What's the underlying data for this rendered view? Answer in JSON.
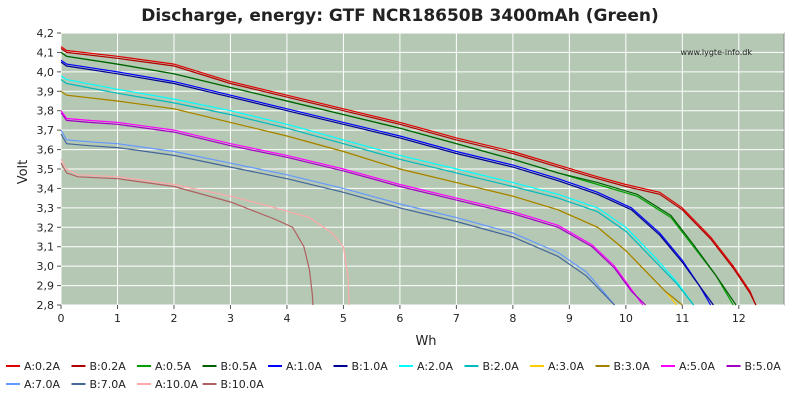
{
  "chart_data": {
    "type": "line",
    "title": "Discharge, energy: GTF NCR18650B 3400mAh (Green)",
    "xlabel": "Wh",
    "ylabel": "Volt",
    "watermark": "www.lygte-info.dk",
    "xlim": [
      0,
      12.8
    ],
    "ylim": [
      2.8,
      4.2
    ],
    "xticks": [
      "0",
      "1",
      "2",
      "3",
      "4",
      "5",
      "6",
      "7",
      "8",
      "9",
      "10",
      "11",
      "12"
    ],
    "yticks": [
      "2,8",
      "2,9",
      "3,0",
      "3,1",
      "3,2",
      "3,3",
      "3,4",
      "3,5",
      "3,6",
      "3,7",
      "3,8",
      "3,9",
      "4,0",
      "4,1",
      "4,2"
    ],
    "grid": true,
    "legend_position": "bottom",
    "series": [
      {
        "name": "A:0.2A",
        "color": "#e00000",
        "x": [
          0,
          0.1,
          1,
          2,
          3,
          4,
          5,
          6,
          7,
          8,
          8.8,
          9.5,
          10,
          10.6,
          11,
          11.5,
          11.9,
          12.2,
          12.3
        ],
        "y": [
          4.13,
          4.11,
          4.08,
          4.04,
          3.95,
          3.88,
          3.81,
          3.74,
          3.66,
          3.59,
          3.52,
          3.46,
          3.42,
          3.38,
          3.3,
          3.15,
          3.0,
          2.87,
          2.8
        ]
      },
      {
        "name": "B:0.2A",
        "color": "#b00000",
        "x": [
          0,
          0.1,
          1,
          2,
          3,
          4,
          5,
          6,
          7,
          8,
          8.8,
          9.5,
          10,
          10.6,
          11,
          11.5,
          11.9,
          12.2,
          12.3
        ],
        "y": [
          4.12,
          4.1,
          4.07,
          4.03,
          3.94,
          3.87,
          3.8,
          3.73,
          3.65,
          3.58,
          3.51,
          3.45,
          3.41,
          3.37,
          3.29,
          3.14,
          2.99,
          2.86,
          2.8
        ]
      },
      {
        "name": "A:0.5A",
        "color": "#00a000",
        "x": [
          0,
          0.1,
          1,
          2,
          3,
          4,
          5,
          6,
          7,
          8,
          8.8,
          9.5,
          10.2,
          10.8,
          11.2,
          11.6,
          11.9
        ],
        "y": [
          4.1,
          4.08,
          4.04,
          3.99,
          3.92,
          3.85,
          3.78,
          3.71,
          3.63,
          3.55,
          3.48,
          3.42,
          3.36,
          3.25,
          3.1,
          2.95,
          2.8
        ]
      },
      {
        "name": "B:0.5A",
        "color": "#006000",
        "x": [
          0,
          0.1,
          1,
          2,
          3,
          4,
          5,
          6,
          7,
          8,
          8.8,
          9.5,
          10.2,
          10.8,
          11.2,
          11.6,
          11.95
        ],
        "y": [
          4.1,
          4.08,
          4.04,
          3.99,
          3.92,
          3.85,
          3.78,
          3.71,
          3.63,
          3.55,
          3.48,
          3.43,
          3.37,
          3.26,
          3.11,
          2.95,
          2.8
        ]
      },
      {
        "name": "A:1.0A",
        "color": "#0000ff",
        "x": [
          0,
          0.1,
          1,
          2,
          3,
          4,
          5,
          6,
          7,
          8,
          8.8,
          9.5,
          10.1,
          10.6,
          11.0,
          11.3,
          11.5
        ],
        "y": [
          4.06,
          4.04,
          4.0,
          3.95,
          3.88,
          3.81,
          3.74,
          3.67,
          3.59,
          3.52,
          3.45,
          3.38,
          3.3,
          3.17,
          3.03,
          2.9,
          2.8
        ]
      },
      {
        "name": "B:1.0A",
        "color": "#000090",
        "x": [
          0,
          0.1,
          1,
          2,
          3,
          4,
          5,
          6,
          7,
          8,
          8.8,
          9.5,
          10.1,
          10.6,
          11.0,
          11.3,
          11.55
        ],
        "y": [
          4.05,
          4.03,
          3.99,
          3.94,
          3.87,
          3.8,
          3.73,
          3.66,
          3.58,
          3.51,
          3.44,
          3.37,
          3.29,
          3.16,
          3.02,
          2.9,
          2.8
        ]
      },
      {
        "name": "A:2.0A",
        "color": "#00ffff",
        "x": [
          0,
          0.1,
          1,
          2,
          3,
          4,
          5,
          6,
          7,
          8,
          8.8,
          9.5,
          10.0,
          10.5,
          10.9,
          11.2
        ],
        "y": [
          3.98,
          3.96,
          3.91,
          3.86,
          3.8,
          3.73,
          3.65,
          3.57,
          3.5,
          3.43,
          3.37,
          3.3,
          3.2,
          3.05,
          2.92,
          2.8
        ]
      },
      {
        "name": "B:2.0A",
        "color": "#00bbbb",
        "x": [
          0,
          0.1,
          1,
          2,
          3,
          4,
          5,
          6,
          7,
          8,
          8.8,
          9.5,
          10.0,
          10.5,
          10.9,
          11.2
        ],
        "y": [
          3.96,
          3.94,
          3.89,
          3.84,
          3.78,
          3.71,
          3.63,
          3.55,
          3.48,
          3.41,
          3.35,
          3.28,
          3.18,
          3.03,
          2.91,
          2.8
        ]
      },
      {
        "name": "A:3.0A",
        "color": "#ffcc00",
        "x": [
          0,
          0.1,
          1,
          2,
          3,
          4,
          5,
          6,
          7,
          8,
          8.8,
          9.5,
          10.0,
          10.4,
          10.7,
          10.9
        ],
        "y": [
          3.9,
          3.88,
          3.85,
          3.81,
          3.74,
          3.67,
          3.59,
          3.5,
          3.43,
          3.36,
          3.29,
          3.2,
          3.08,
          2.96,
          2.87,
          2.8
        ]
      },
      {
        "name": "B:3.0A",
        "color": "#a08000",
        "x": [
          0,
          0.1,
          1,
          2,
          3,
          4,
          5,
          6,
          7,
          8,
          8.8,
          9.5,
          10.0,
          10.4,
          10.7,
          11.0
        ],
        "y": [
          3.9,
          3.88,
          3.85,
          3.81,
          3.74,
          3.67,
          3.59,
          3.5,
          3.43,
          3.36,
          3.29,
          3.2,
          3.08,
          2.96,
          2.87,
          2.8
        ]
      },
      {
        "name": "A:5.0A",
        "color": "#ff00ff",
        "x": [
          0,
          0.1,
          0.5,
          1,
          2,
          3,
          4,
          5,
          6,
          7,
          8,
          8.8,
          9.4,
          9.8,
          10.1,
          10.3
        ],
        "y": [
          3.8,
          3.76,
          3.75,
          3.74,
          3.7,
          3.63,
          3.57,
          3.5,
          3.42,
          3.35,
          3.28,
          3.21,
          3.11,
          3.0,
          2.88,
          2.8
        ]
      },
      {
        "name": "B:5.0A",
        "color": "#a000c0",
        "x": [
          0,
          0.1,
          0.5,
          1,
          2,
          3,
          4,
          5,
          6,
          7,
          8,
          8.8,
          9.4,
          9.8,
          10.1,
          10.35
        ],
        "y": [
          3.79,
          3.75,
          3.74,
          3.73,
          3.69,
          3.62,
          3.56,
          3.49,
          3.41,
          3.34,
          3.27,
          3.2,
          3.1,
          2.99,
          2.87,
          2.8
        ]
      },
      {
        "name": "A:7.0A",
        "color": "#6699ff",
        "x": [
          0,
          0.1,
          0.5,
          1,
          2,
          3,
          4,
          5,
          6,
          7,
          8,
          8.8,
          9.3,
          9.6,
          9.8
        ],
        "y": [
          3.7,
          3.65,
          3.64,
          3.63,
          3.59,
          3.53,
          3.47,
          3.4,
          3.32,
          3.25,
          3.17,
          3.07,
          2.97,
          2.87,
          2.8
        ]
      },
      {
        "name": "B:7.0A",
        "color": "#446699",
        "x": [
          0,
          0.1,
          0.5,
          1,
          2,
          3,
          4,
          5,
          6,
          7,
          8,
          8.8,
          9.3,
          9.6,
          9.8
        ],
        "y": [
          3.68,
          3.63,
          3.62,
          3.61,
          3.57,
          3.51,
          3.45,
          3.38,
          3.3,
          3.23,
          3.15,
          3.05,
          2.95,
          2.86,
          2.8
        ]
      },
      {
        "name": "A:10.0A",
        "color": "#ffaaaa",
        "x": [
          0,
          0.1,
          0.3,
          1,
          2,
          3,
          3.8,
          4.4,
          4.8,
          5.0,
          5.08,
          5.1
        ],
        "y": [
          3.55,
          3.5,
          3.47,
          3.46,
          3.42,
          3.36,
          3.3,
          3.25,
          3.17,
          3.1,
          2.95,
          2.8
        ]
      },
      {
        "name": "B:10.0A",
        "color": "#b06060",
        "x": [
          0,
          0.1,
          0.3,
          1,
          2,
          3,
          3.8,
          4.1,
          4.3,
          4.4,
          4.45,
          4.46
        ],
        "y": [
          3.53,
          3.48,
          3.46,
          3.45,
          3.41,
          3.33,
          3.24,
          3.2,
          3.1,
          2.98,
          2.85,
          2.8
        ]
      }
    ]
  }
}
